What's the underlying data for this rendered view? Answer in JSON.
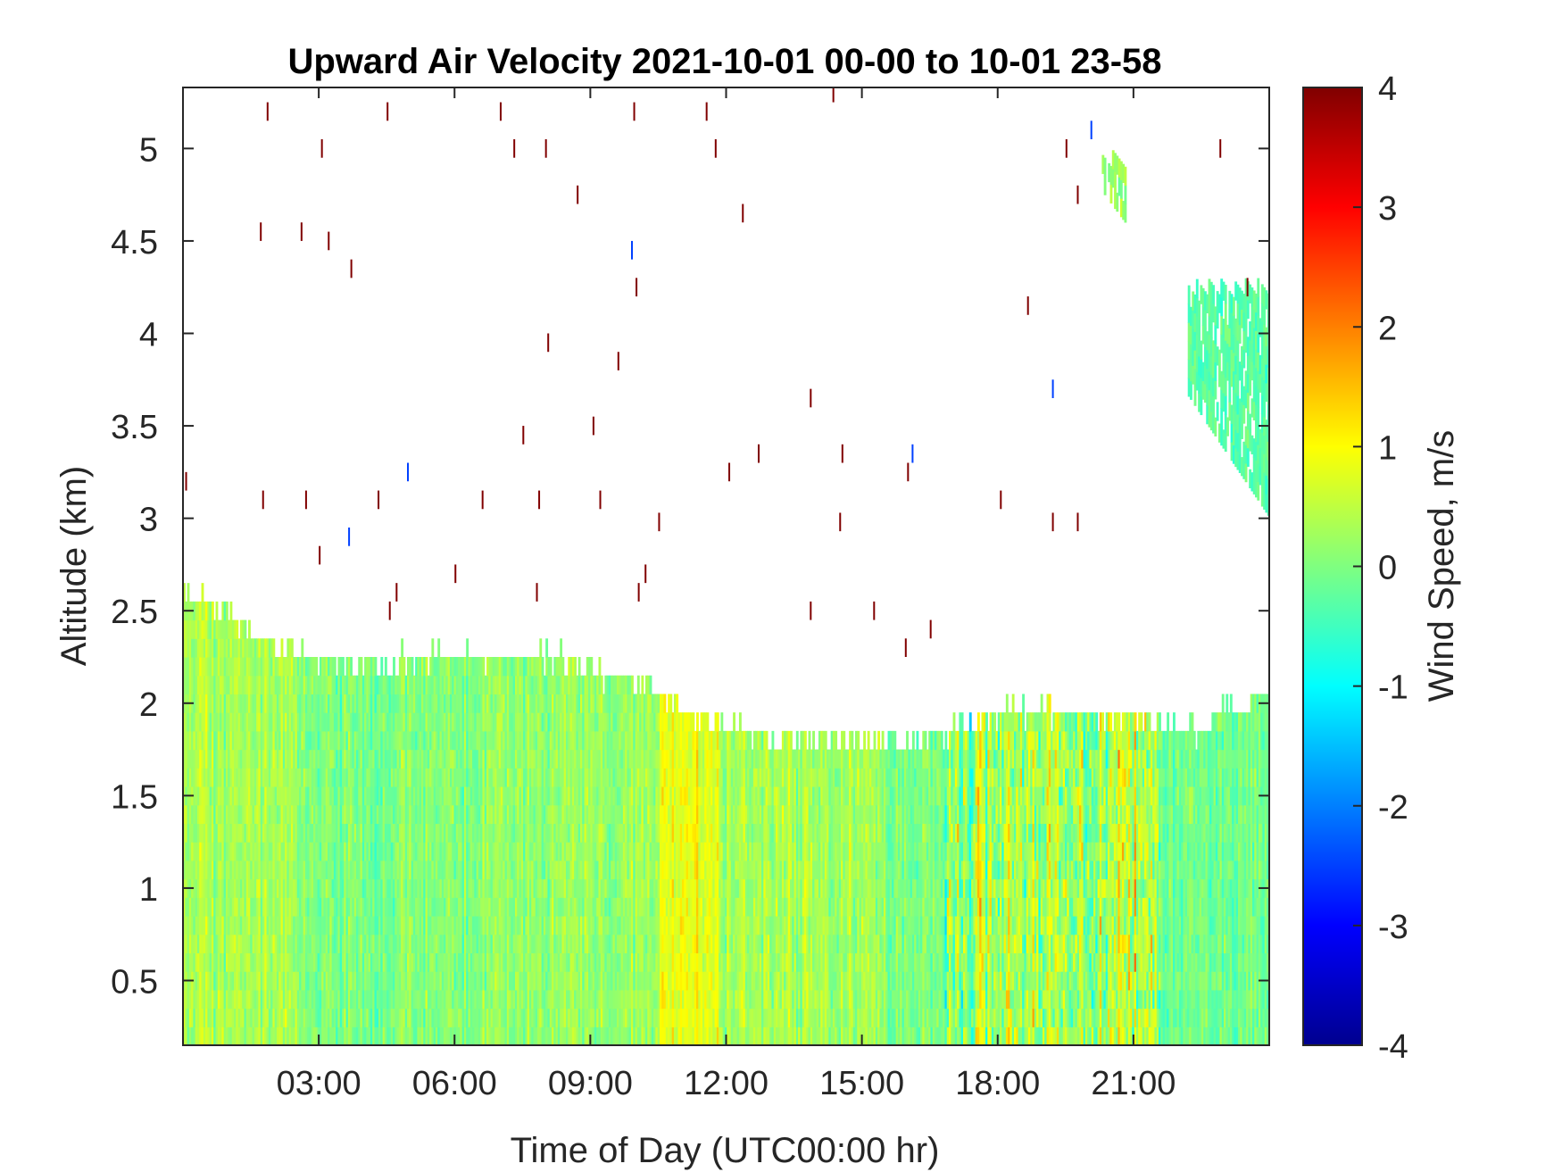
{
  "chart_data": {
    "type": "heatmap",
    "title": "Upward Air Velocity 2021-10-01 00-00 to 10-01 23-58",
    "xlabel": "Time of Day (UTC00:00 hr)",
    "ylabel": "Altitude (km)",
    "xlim_hours": [
      0,
      24
    ],
    "ylim_km": [
      0.15,
      5.33
    ],
    "x_ticks": [
      {
        "hour": 3,
        "label": "03:00"
      },
      {
        "hour": 6,
        "label": "06:00"
      },
      {
        "hour": 9,
        "label": "09:00"
      },
      {
        "hour": 12,
        "label": "12:00"
      },
      {
        "hour": 15,
        "label": "15:00"
      },
      {
        "hour": 18,
        "label": "18:00"
      },
      {
        "hour": 21,
        "label": "21:00"
      }
    ],
    "y_ticks": [
      {
        "value": 0.5,
        "label": "0.5"
      },
      {
        "value": 1,
        "label": "1"
      },
      {
        "value": 1.5,
        "label": "1.5"
      },
      {
        "value": 2,
        "label": "2"
      },
      {
        "value": 2.5,
        "label": "2.5"
      },
      {
        "value": 3,
        "label": "3"
      },
      {
        "value": 3.5,
        "label": "3.5"
      },
      {
        "value": 4,
        "label": "4"
      },
      {
        "value": 4.5,
        "label": "4.5"
      },
      {
        "value": 5,
        "label": "5"
      }
    ],
    "colorbar": {
      "label": "Wind Speed, m/s",
      "range": [
        -4,
        4
      ],
      "ticks": [
        {
          "value": 4,
          "label": "4"
        },
        {
          "value": 3,
          "label": "3"
        },
        {
          "value": 2,
          "label": "2"
        },
        {
          "value": 1,
          "label": "1"
        },
        {
          "value": 0,
          "label": "0"
        },
        {
          "value": -1,
          "label": "-1"
        },
        {
          "value": -2,
          "label": "-2"
        },
        {
          "value": -3,
          "label": "-3"
        },
        {
          "value": -4,
          "label": "-4"
        }
      ],
      "colormap": "jet",
      "colormap_stops": [
        "#00008f",
        "#0000ff",
        "#00ffff",
        "#ffff00",
        "#ff0000",
        "#800000"
      ]
    },
    "data_top_km": [
      [
        0.0,
        2.55
      ],
      [
        0.9,
        2.45
      ],
      [
        1.7,
        2.3
      ],
      [
        2.9,
        2.2
      ],
      [
        4.0,
        2.15
      ],
      [
        5.0,
        2.2
      ],
      [
        8.5,
        2.2
      ],
      [
        9.2,
        2.1
      ],
      [
        10.2,
        2.05
      ],
      [
        11.0,
        1.9
      ],
      [
        12.5,
        1.8
      ],
      [
        13.5,
        1.75
      ],
      [
        14.5,
        1.75
      ],
      [
        16.5,
        1.75
      ],
      [
        17.0,
        1.8
      ],
      [
        17.5,
        1.85
      ],
      [
        18.0,
        1.9
      ],
      [
        20.0,
        1.9
      ],
      [
        21.0,
        1.85
      ],
      [
        22.5,
        1.8
      ],
      [
        23.0,
        1.95
      ],
      [
        24.0,
        2.0
      ]
    ],
    "data_band_mean_ms": [
      {
        "from_hour": 0,
        "to_hour": 2.5,
        "w": 0.3
      },
      {
        "from_hour": 2.5,
        "to_hour": 6.5,
        "w": 0.0
      },
      {
        "from_hour": 6.5,
        "to_hour": 10.5,
        "w": 0.2
      },
      {
        "from_hour": 10.5,
        "to_hour": 11.8,
        "w": 0.9
      },
      {
        "from_hour": 11.8,
        "to_hour": 15.5,
        "w": 0.3
      },
      {
        "from_hour": 15.5,
        "to_hour": 17.5,
        "w": 0.0
      },
      {
        "from_hour": 17.5,
        "to_hour": 21.5,
        "w": 0.4
      },
      {
        "from_hour": 21.5,
        "to_hour": 24,
        "w": -0.1
      }
    ],
    "upper_layer": [
      {
        "hour_from": 22.2,
        "hour_to": 24.0,
        "alt_bottom_km": 3.0,
        "alt_top_km": 4.2,
        "w": -0.3
      },
      {
        "hour_from": 20.3,
        "hour_to": 20.8,
        "alt_bottom_km": 4.6,
        "alt_top_km": 4.9,
        "w": 0.2
      }
    ],
    "sparse_returns": [
      {
        "hour": 1.85,
        "alt_km": 5.2,
        "w": 4
      },
      {
        "hour": 1.7,
        "alt_km": 4.55,
        "w": 4
      },
      {
        "hour": 2.6,
        "alt_km": 4.55,
        "w": 4
      },
      {
        "hour": 3.05,
        "alt_km": 5.0,
        "w": 4
      },
      {
        "hour": 3.2,
        "alt_km": 4.5,
        "w": 4
      },
      {
        "hour": 3.7,
        "alt_km": 4.35,
        "w": 4
      },
      {
        "hour": 4.5,
        "alt_km": 5.2,
        "w": 4
      },
      {
        "hour": 7.0,
        "alt_km": 5.2,
        "w": 4
      },
      {
        "hour": 7.3,
        "alt_km": 5.0,
        "w": 4
      },
      {
        "hour": 8.0,
        "alt_km": 5.0,
        "w": 4
      },
      {
        "hour": 8.7,
        "alt_km": 4.75,
        "w": 4
      },
      {
        "hour": 9.95,
        "alt_km": 5.2,
        "w": 4
      },
      {
        "hour": 10.0,
        "alt_km": 4.25,
        "w": 4
      },
      {
        "hour": 9.9,
        "alt_km": 4.45,
        "w": -2.5
      },
      {
        "hour": 11.55,
        "alt_km": 5.2,
        "w": 4
      },
      {
        "hour": 11.75,
        "alt_km": 5.0,
        "w": 4
      },
      {
        "hour": 12.35,
        "alt_km": 4.65,
        "w": 4
      },
      {
        "hour": 14.35,
        "alt_km": 5.3,
        "w": 4
      },
      {
        "hour": 8.05,
        "alt_km": 3.95,
        "w": 4
      },
      {
        "hour": 9.6,
        "alt_km": 3.85,
        "w": 4
      },
      {
        "hour": 13.85,
        "alt_km": 3.65,
        "w": 4
      },
      {
        "hour": 9.05,
        "alt_km": 3.5,
        "w": 4
      },
      {
        "hour": 7.5,
        "alt_km": 3.45,
        "w": 4
      },
      {
        "hour": 12.7,
        "alt_km": 3.35,
        "w": 4
      },
      {
        "hour": 14.55,
        "alt_km": 3.35,
        "w": 4
      },
      {
        "hour": 16.1,
        "alt_km": 3.35,
        "w": -2.5
      },
      {
        "hour": 12.05,
        "alt_km": 3.25,
        "w": 4
      },
      {
        "hour": 16.0,
        "alt_km": 3.25,
        "w": 4
      },
      {
        "hour": 4.95,
        "alt_km": 3.25,
        "w": -2.5
      },
      {
        "hour": 0.05,
        "alt_km": 3.2,
        "w": 4
      },
      {
        "hour": 1.75,
        "alt_km": 3.1,
        "w": 4
      },
      {
        "hour": 2.7,
        "alt_km": 3.1,
        "w": 4
      },
      {
        "hour": 4.3,
        "alt_km": 3.1,
        "w": 4
      },
      {
        "hour": 6.6,
        "alt_km": 3.1,
        "w": 4
      },
      {
        "hour": 7.85,
        "alt_km": 3.1,
        "w": 4
      },
      {
        "hour": 9.2,
        "alt_km": 3.1,
        "w": 4
      },
      {
        "hour": 18.05,
        "alt_km": 3.1,
        "w": 4
      },
      {
        "hour": 10.5,
        "alt_km": 2.98,
        "w": 4
      },
      {
        "hour": 14.5,
        "alt_km": 2.98,
        "w": 4
      },
      {
        "hour": 19.2,
        "alt_km": 2.98,
        "w": 4
      },
      {
        "hour": 19.75,
        "alt_km": 2.98,
        "w": 4
      },
      {
        "hour": 3.65,
        "alt_km": 2.9,
        "w": -2.5
      },
      {
        "hour": 3.0,
        "alt_km": 2.8,
        "w": 4
      },
      {
        "hour": 10.2,
        "alt_km": 2.7,
        "w": 4
      },
      {
        "hour": 6.0,
        "alt_km": 2.7,
        "w": 4
      },
      {
        "hour": 4.7,
        "alt_km": 2.6,
        "w": 4
      },
      {
        "hour": 7.8,
        "alt_km": 2.6,
        "w": 4
      },
      {
        "hour": 10.05,
        "alt_km": 2.6,
        "w": 4
      },
      {
        "hour": 13.85,
        "alt_km": 2.5,
        "w": 4
      },
      {
        "hour": 15.25,
        "alt_km": 2.5,
        "w": 4
      },
      {
        "hour": 4.55,
        "alt_km": 2.5,
        "w": 4
      },
      {
        "hour": 16.5,
        "alt_km": 2.4,
        "w": 4
      },
      {
        "hour": 15.95,
        "alt_km": 2.3,
        "w": 4
      },
      {
        "hour": 18.65,
        "alt_km": 4.15,
        "w": 4
      },
      {
        "hour": 19.2,
        "alt_km": 3.7,
        "w": -2.5
      },
      {
        "hour": 19.5,
        "alt_km": 5.0,
        "w": 4
      },
      {
        "hour": 19.75,
        "alt_km": 4.75,
        "w": 4
      },
      {
        "hour": 20.05,
        "alt_km": 5.1,
        "w": -2.5
      },
      {
        "hour": 22.9,
        "alt_km": 5.0,
        "w": 4
      },
      {
        "hour": 23.5,
        "alt_km": 4.25,
        "w": 4
      }
    ]
  }
}
